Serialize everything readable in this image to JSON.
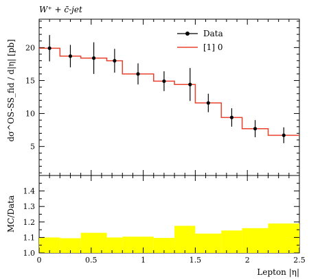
{
  "title": "W⁺ + c̄-jet",
  "chart_data": [
    {
      "panel": "main",
      "type": "line",
      "ylabel": "dσ^OS-SS_fid / d|η| [pb]",
      "xlim": [
        0,
        2.5
      ],
      "ylim": [
        0.6,
        24.3
      ],
      "yticks": [
        5,
        10,
        15,
        20
      ],
      "legend": {
        "placement": "top-right",
        "entries": [
          "Data",
          "[1] 0"
        ]
      },
      "series": [
        {
          "name": "Data",
          "kind": "points-with-errorbars",
          "color": "#000000",
          "x": [
            0.1,
            0.3,
            0.525,
            0.725,
            0.95,
            1.2,
            1.45,
            1.625,
            1.85,
            2.075,
            2.35
          ],
          "y": [
            19.9,
            18.7,
            18.4,
            18.0,
            16.0,
            14.9,
            14.4,
            11.6,
            9.4,
            7.7,
            6.7
          ],
          "err": [
            2.0,
            1.7,
            2.4,
            1.8,
            1.6,
            1.5,
            2.5,
            1.4,
            1.4,
            1.3,
            1.2
          ]
        },
        {
          "name": "[1] 0",
          "kind": "histogram-step",
          "color": "#e8402c",
          "bin_edges": [
            0,
            0.2,
            0.4,
            0.65,
            0.8,
            1.1,
            1.3,
            1.5,
            1.75,
            1.95,
            2.2,
            2.5
          ],
          "values": [
            19.9,
            18.7,
            18.4,
            18.0,
            16.0,
            14.9,
            14.4,
            11.6,
            9.4,
            7.7,
            6.7
          ]
        }
      ]
    },
    {
      "panel": "ratio",
      "type": "area",
      "ylabel": "MC/Data",
      "xlabel": "Lepton |η|",
      "xlim": [
        0,
        2.5
      ],
      "ylim": [
        1.0,
        1.5
      ],
      "xticks": [
        0,
        0.5,
        1,
        1.5,
        2,
        2.5
      ],
      "xtick_labels": [
        "0",
        "0.5",
        "1",
        "1.5",
        "2",
        "2.5"
      ],
      "yticks": [
        1.0,
        1.1,
        1.2,
        1.3,
        1.4
      ],
      "ytick_labels": [
        "1.0",
        "1.1",
        "1.2",
        "1.3",
        "1.4"
      ],
      "band_color": "#ffff00",
      "bin_edges": [
        0,
        0.2,
        0.4,
        0.65,
        0.8,
        1.1,
        1.3,
        1.5,
        1.75,
        1.95,
        2.2,
        2.5
      ],
      "band_lo": [
        1.0,
        1.0,
        1.0,
        1.0,
        1.0,
        1.0,
        1.0,
        1.0,
        1.0,
        1.0,
        1.0
      ],
      "band_hi": [
        1.1,
        1.095,
        1.13,
        1.1,
        1.105,
        1.097,
        1.175,
        1.125,
        1.145,
        1.16,
        1.19
      ]
    }
  ]
}
